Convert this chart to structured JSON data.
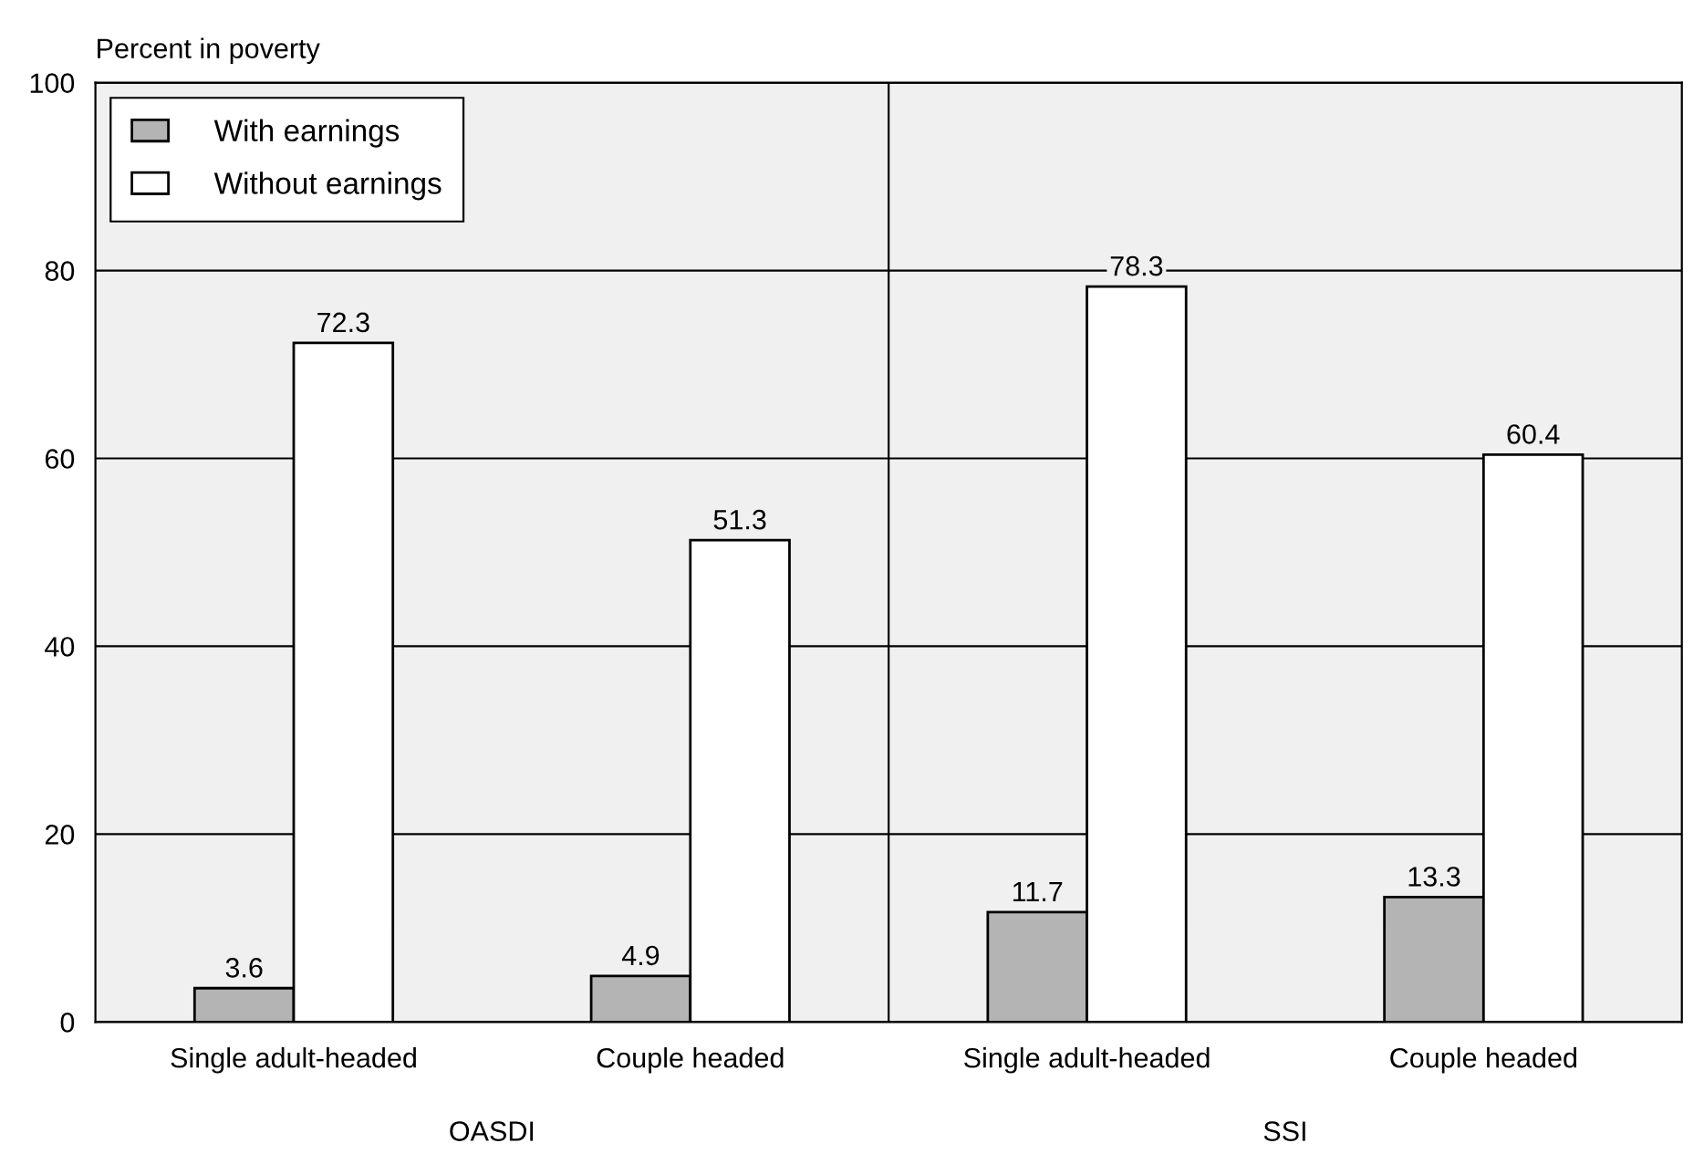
{
  "chart_data": {
    "type": "bar",
    "ylabel": "Percent in poverty",
    "categories": [
      "Single adult-headed",
      "Couple headed",
      "Single adult-headed",
      "Couple headed"
    ],
    "series": [
      {
        "name": "With earnings",
        "color": "#b4b4b4",
        "values": [
          3.6,
          4.9,
          11.7,
          13.3
        ]
      },
      {
        "name": "Without earnings",
        "color": "#ffffff",
        "values": [
          72.3,
          51.3,
          78.3,
          60.4
        ]
      }
    ],
    "ylim": [
      0,
      100
    ],
    "yticks": [
      0,
      20,
      40,
      60,
      80,
      100
    ],
    "grid": "y",
    "legend": "top left",
    "data_labels": true,
    "annotations": [
      "OASDI",
      "SSI"
    ]
  }
}
